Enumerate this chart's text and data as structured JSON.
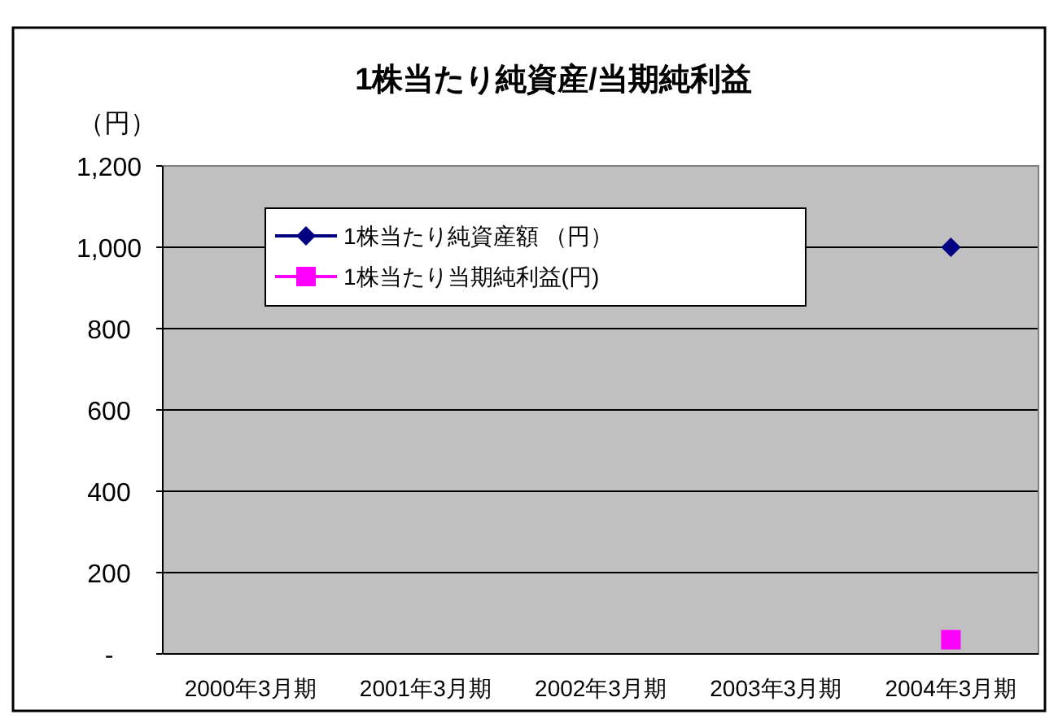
{
  "chart_data": {
    "type": "line",
    "title": "1株当たり純資産/当期純利益",
    "ylabel": "（円）",
    "categories": [
      "2000年3月期",
      "2001年3月期",
      "2002年3月期",
      "2003年3月期",
      "2004年3月期"
    ],
    "series": [
      {
        "name": "1株当たり純資産額 （円）",
        "color": "#000080",
        "marker": "diamond",
        "values": [
          null,
          null,
          null,
          null,
          1000
        ]
      },
      {
        "name": "1株当たり当期純利益(円)",
        "color": "#ff00ff",
        "marker": "square",
        "values": [
          null,
          null,
          null,
          null,
          35
        ]
      }
    ],
    "ylim": [
      0,
      1200
    ],
    "yticks": [
      {
        "value": 0,
        "label": "-"
      },
      200,
      400,
      600,
      800,
      {
        "value": 1000,
        "label": "1,000"
      },
      {
        "value": 1200,
        "label": "1,200"
      }
    ],
    "grid": "y",
    "legend": "top",
    "line_style": "solid"
  }
}
